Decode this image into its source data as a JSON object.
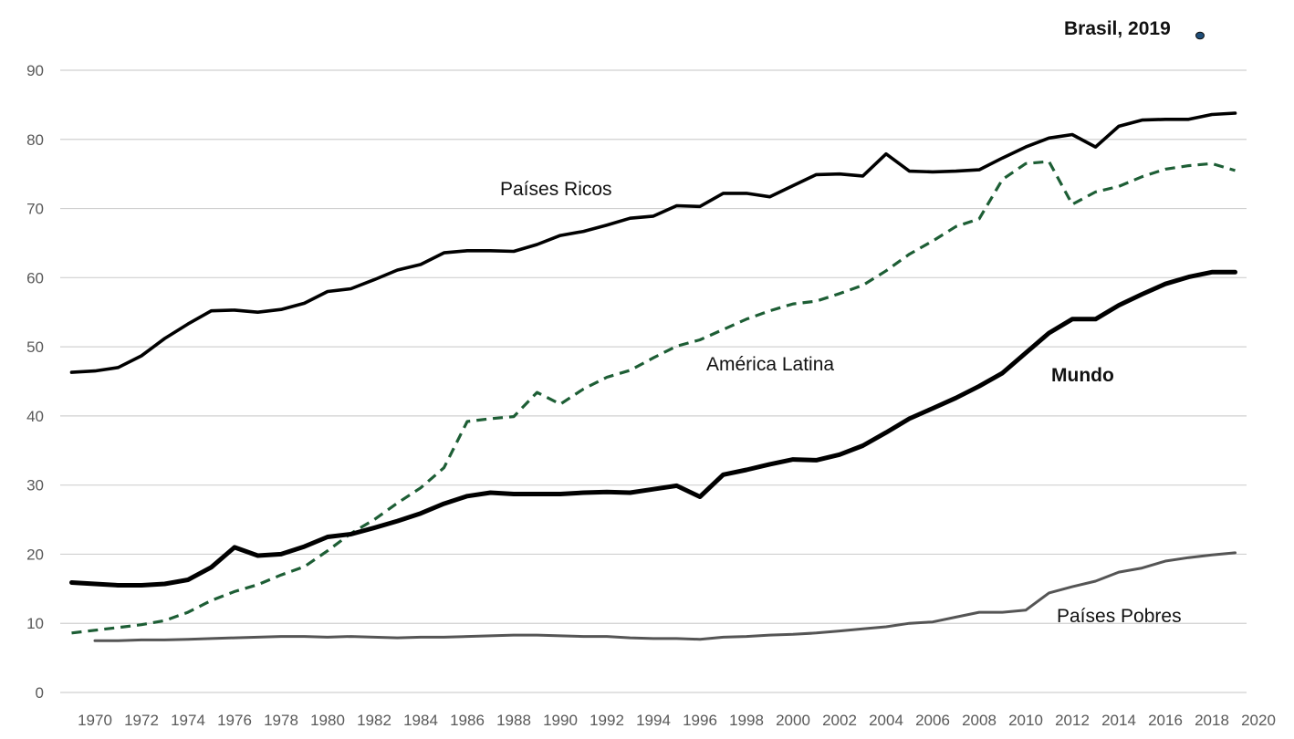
{
  "chart_data": {
    "type": "line",
    "title": "",
    "xlabel": "",
    "ylabel": "",
    "ylim": [
      0,
      90
    ],
    "y_ticks": [
      0,
      10,
      20,
      30,
      40,
      50,
      60,
      70,
      80,
      90
    ],
    "x_ticks": [
      1970,
      1972,
      1974,
      1976,
      1978,
      1980,
      1982,
      1984,
      1986,
      1988,
      1990,
      1992,
      1994,
      1996,
      1998,
      2000,
      2002,
      2004,
      2006,
      2008,
      2010,
      2012,
      2014,
      2016,
      2018,
      2020
    ],
    "grid": true,
    "series": [
      {
        "name": "Países Ricos",
        "label_text": "Países Ricos",
        "color": "#000000",
        "style": "solid",
        "x": [
          1969,
          1970,
          1971,
          1972,
          1973,
          1974,
          1975,
          1976,
          1977,
          1978,
          1979,
          1980,
          1981,
          1982,
          1983,
          1984,
          1985,
          1986,
          1987,
          1988,
          1989,
          1990,
          1991,
          1992,
          1993,
          1994,
          1995,
          1996,
          1997,
          1998,
          1999,
          2000,
          2001,
          2002,
          2003,
          2004,
          2005,
          2006,
          2007,
          2008,
          2009,
          2010,
          2011,
          2012,
          2013,
          2014,
          2015,
          2016,
          2017,
          2018,
          2019
        ],
        "values": [
          46.3,
          46.5,
          47.0,
          48.7,
          51.2,
          53.3,
          55.2,
          55.3,
          55.0,
          55.4,
          56.3,
          58.0,
          58.4,
          59.7,
          61.1,
          61.9,
          63.6,
          63.9,
          63.9,
          63.8,
          64.8,
          66.1,
          66.7,
          67.6,
          68.6,
          68.9,
          70.4,
          70.3,
          72.2,
          72.2,
          71.7,
          73.3,
          74.9,
          75.0,
          74.7,
          77.9,
          75.4,
          75.3,
          75.4,
          75.6,
          77.3,
          78.9,
          80.2,
          80.7,
          78.9,
          81.9,
          82.8,
          82.9,
          82.9,
          83.6,
          83.8
        ]
      },
      {
        "name": "América Latina",
        "label_text": "América Latina",
        "color": "#1d5e35",
        "style": "dashed",
        "x": [
          1969,
          1970,
          1971,
          1972,
          1973,
          1974,
          1975,
          1976,
          1977,
          1978,
          1979,
          1980,
          1981,
          1982,
          1983,
          1984,
          1985,
          1986,
          1987,
          1988,
          1989,
          1990,
          1991,
          1992,
          1993,
          1994,
          1995,
          1996,
          1997,
          1998,
          1999,
          2000,
          2001,
          2002,
          2003,
          2004,
          2005,
          2006,
          2007,
          2008,
          2009,
          2010,
          2011,
          2012,
          2013,
          2014,
          2015,
          2016,
          2017,
          2018,
          2019
        ],
        "values": [
          8.6,
          9.0,
          9.4,
          9.8,
          10.4,
          11.6,
          13.3,
          14.6,
          15.6,
          17.0,
          18.2,
          20.5,
          23.0,
          25.0,
          27.4,
          29.6,
          32.5,
          39.2,
          39.6,
          39.9,
          43.4,
          41.7,
          43.9,
          45.6,
          46.6,
          48.4,
          50.1,
          51.0,
          52.5,
          54.0,
          55.2,
          56.2,
          56.6,
          57.7,
          58.9,
          61.0,
          63.4,
          65.3,
          67.4,
          68.5,
          74.2,
          76.5,
          76.8,
          70.6,
          72.4,
          73.2,
          74.6,
          75.7,
          76.2,
          76.5,
          75.5
        ]
      },
      {
        "name": "Mundo",
        "label_text": "Mundo",
        "color": "#000000",
        "style": "thick",
        "x": [
          1969,
          1970,
          1971,
          1972,
          1973,
          1974,
          1975,
          1976,
          1977,
          1978,
          1979,
          1980,
          1981,
          1982,
          1983,
          1984,
          1985,
          1986,
          1987,
          1988,
          1989,
          1990,
          1991,
          1992,
          1993,
          1994,
          1995,
          1996,
          1997,
          1998,
          1999,
          2000,
          2001,
          2002,
          2003,
          2004,
          2005,
          2006,
          2007,
          2008,
          2009,
          2010,
          2011,
          2012,
          2013,
          2014,
          2015,
          2016,
          2017,
          2018,
          2019
        ],
        "values": [
          15.9,
          15.7,
          15.5,
          15.5,
          15.7,
          16.3,
          18.1,
          21.0,
          19.8,
          20.0,
          21.1,
          22.5,
          22.9,
          23.8,
          24.8,
          25.9,
          27.3,
          28.4,
          28.9,
          28.7,
          28.7,
          28.7,
          28.9,
          29.0,
          28.9,
          29.4,
          29.9,
          28.3,
          31.5,
          32.2,
          33.0,
          33.7,
          33.6,
          34.4,
          35.7,
          37.6,
          39.6,
          41.1,
          42.6,
          44.3,
          46.2,
          49.1,
          52.0,
          54.0,
          54.0,
          56.0,
          57.6,
          59.1,
          60.1,
          60.8,
          60.8
        ]
      },
      {
        "name": "Países Pobres",
        "label_text": "Países Pobres",
        "color": "#555555",
        "style": "solid",
        "x": [
          1970,
          1971,
          1972,
          1973,
          1974,
          1975,
          1976,
          1977,
          1978,
          1979,
          1980,
          1981,
          1982,
          1983,
          1984,
          1985,
          1986,
          1987,
          1988,
          1989,
          1990,
          1991,
          1992,
          1993,
          1994,
          1995,
          1996,
          1997,
          1998,
          1999,
          2000,
          2001,
          2002,
          2003,
          2004,
          2005,
          2006,
          2007,
          2008,
          2009,
          2010,
          2011,
          2012,
          2013,
          2014,
          2015,
          2016,
          2017,
          2018,
          2019
        ],
        "values": [
          7.5,
          7.5,
          7.6,
          7.6,
          7.7,
          7.8,
          7.9,
          8.0,
          8.1,
          8.1,
          8.0,
          8.1,
          8.0,
          7.9,
          8.0,
          8.0,
          8.1,
          8.2,
          8.3,
          8.3,
          8.2,
          8.1,
          8.1,
          7.9,
          7.8,
          7.8,
          7.7,
          8.0,
          8.1,
          8.3,
          8.4,
          8.6,
          8.9,
          9.2,
          9.5,
          10.0,
          10.2,
          10.9,
          11.6,
          11.6,
          11.9,
          14.4,
          15.3,
          16.1,
          17.4,
          18.0,
          19.0,
          19.5,
          19.9,
          20.2
        ]
      }
    ],
    "point": {
      "label": "Brasil, 2019",
      "x": 2019,
      "y": 95,
      "color": "#1f4e79"
    }
  }
}
